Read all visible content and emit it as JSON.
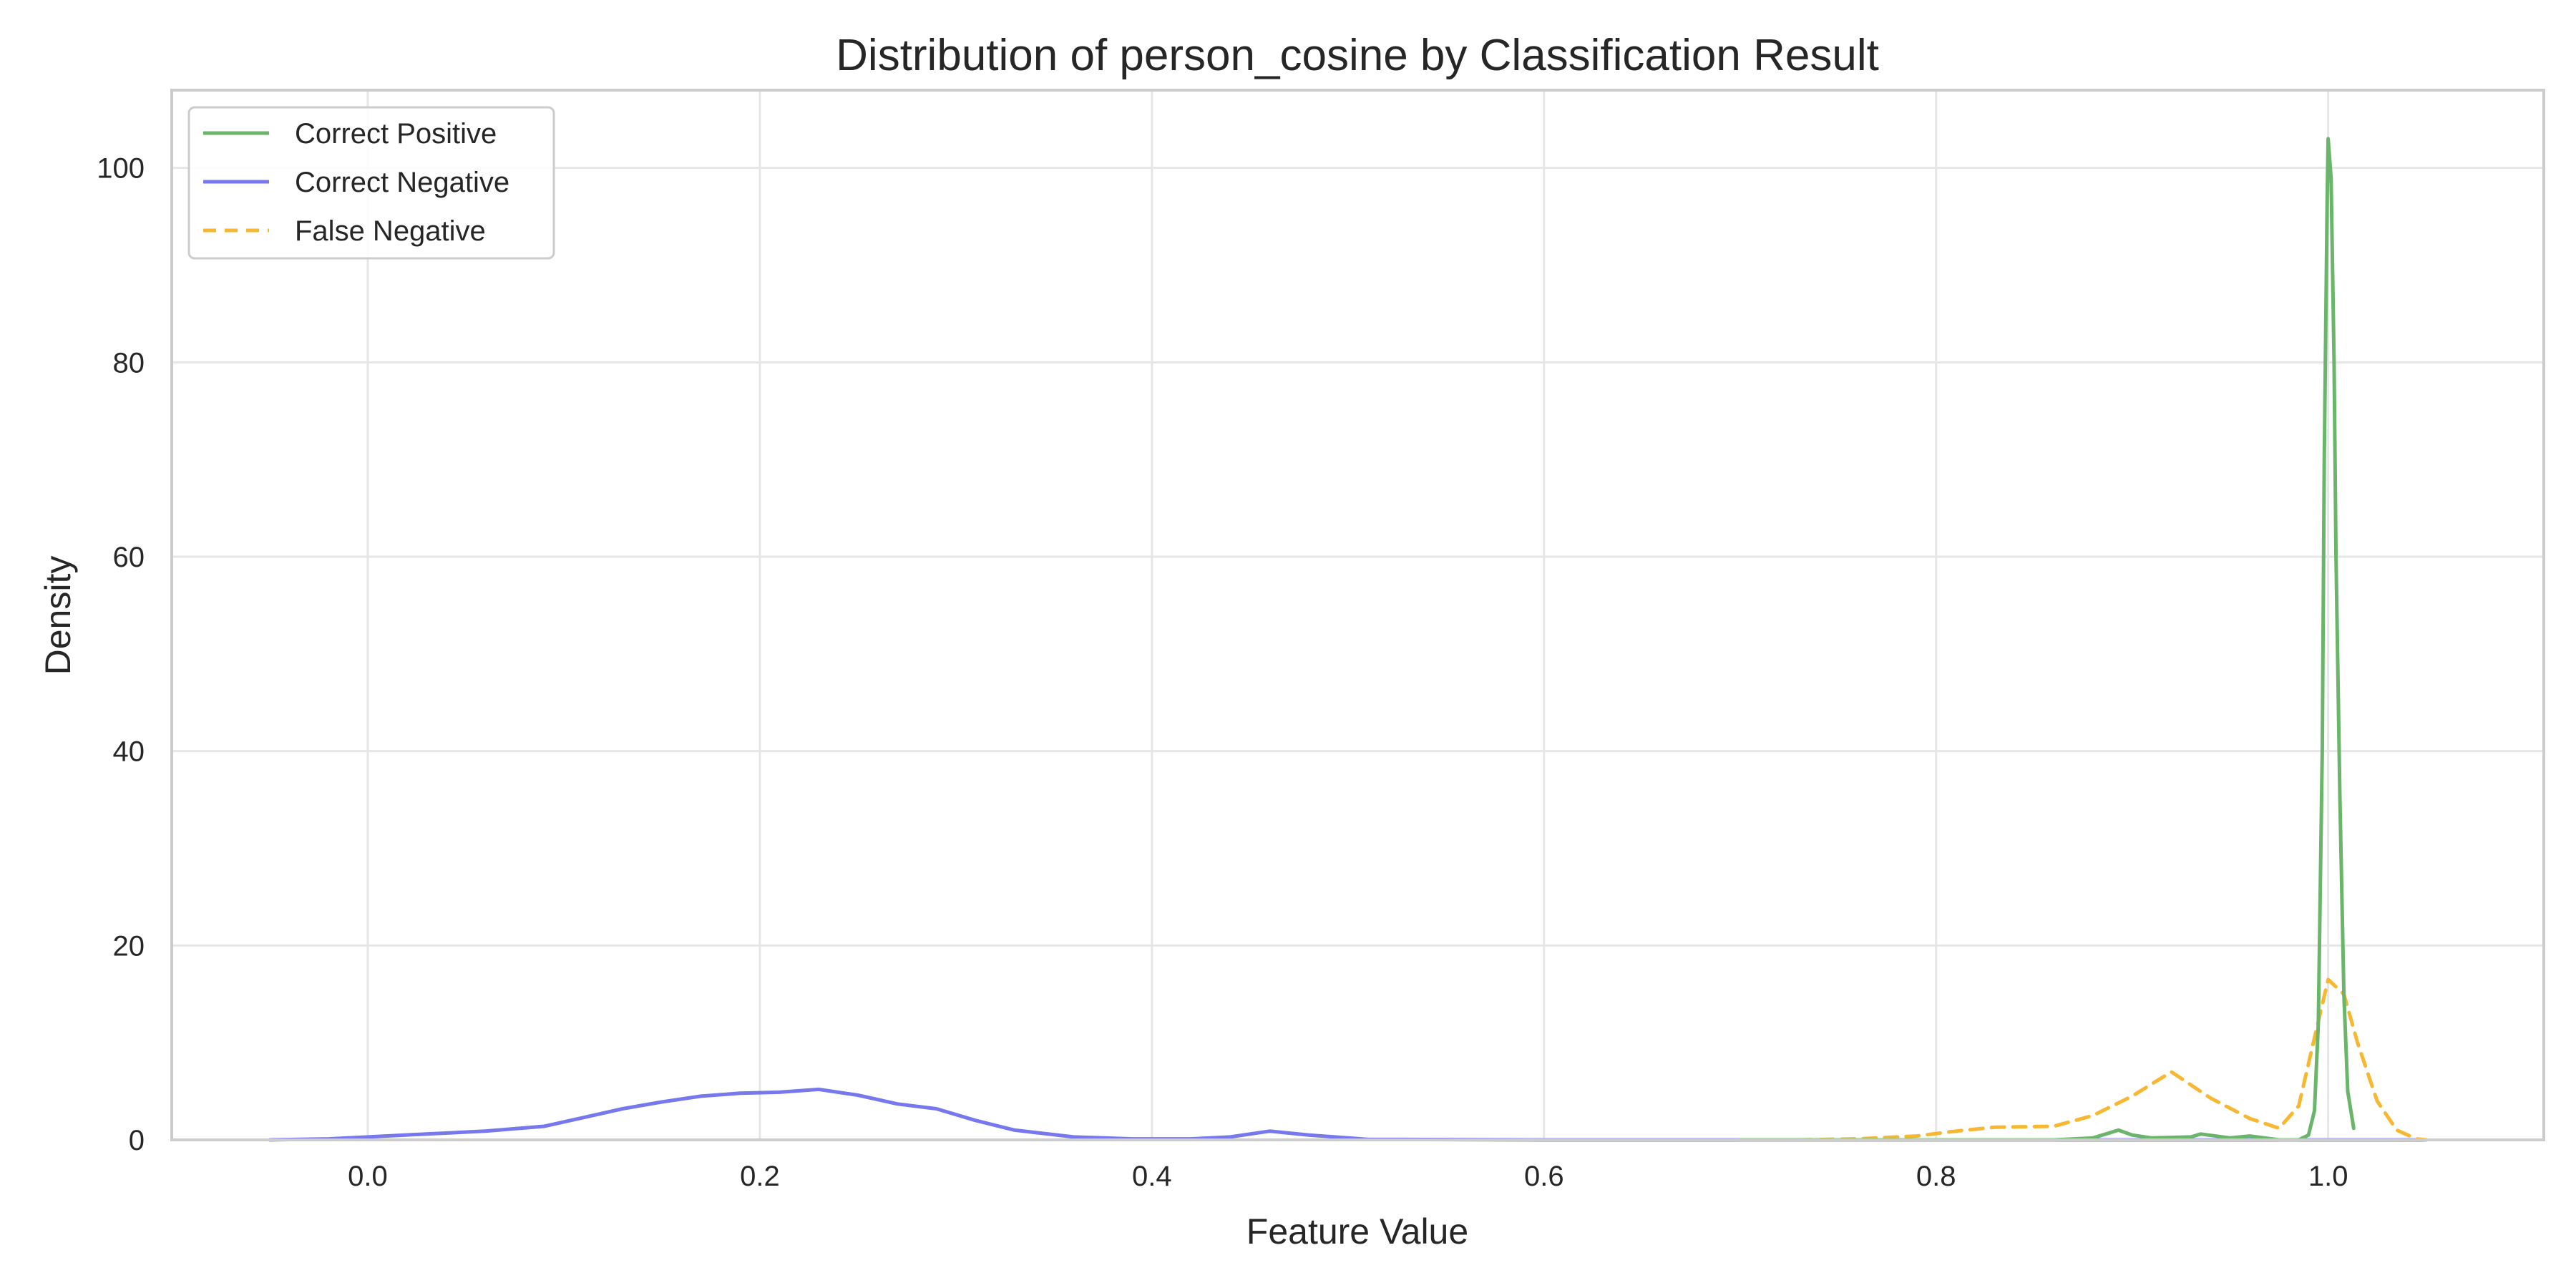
{
  "chart_data": {
    "type": "line",
    "title": "Distribution of person_cosine by Classification Result",
    "xlabel": "Feature Value",
    "ylabel": "Density",
    "xlim": [
      -0.1,
      1.11
    ],
    "ylim": [
      0,
      108
    ],
    "xticks": [
      0.0,
      0.2,
      0.4,
      0.6,
      0.8,
      1.0
    ],
    "xtick_labels": [
      "0.0",
      "0.2",
      "0.4",
      "0.6",
      "0.8",
      "1.0"
    ],
    "yticks": [
      0,
      20,
      40,
      60,
      80,
      100
    ],
    "ytick_labels": [
      "0",
      "20",
      "40",
      "60",
      "80",
      "100"
    ],
    "grid": true,
    "legend_position": "top-left",
    "series": [
      {
        "name": "Correct Positive",
        "color": "#6ab56a",
        "dash": "solid",
        "x": [
          0.7,
          0.8,
          0.86,
          0.88,
          0.893,
          0.9,
          0.91,
          0.93,
          0.935,
          0.95,
          0.96,
          0.975,
          0.985,
          0.99,
          0.993,
          0.995,
          0.997,
          0.998,
          0.9995,
          1.0,
          1.0015,
          1.003,
          1.004,
          1.006,
          1.008,
          1.01,
          1.013
        ],
        "y": [
          0,
          0,
          0,
          0.2,
          1.0,
          0.5,
          0.2,
          0.3,
          0.6,
          0.2,
          0.4,
          0,
          0,
          0.5,
          3,
          12,
          40,
          70,
          97,
          103,
          99,
          80,
          60,
          35,
          15,
          5,
          1.2
        ]
      },
      {
        "name": "Correct Negative",
        "color": "#7777ee",
        "dash": "solid",
        "x": [
          -0.05,
          -0.02,
          0.0,
          0.03,
          0.06,
          0.09,
          0.11,
          0.13,
          0.15,
          0.17,
          0.19,
          0.21,
          0.23,
          0.25,
          0.27,
          0.29,
          0.31,
          0.33,
          0.36,
          0.39,
          0.42,
          0.44,
          0.46,
          0.48,
          0.51,
          0.6,
          0.8,
          1.0,
          1.05
        ],
        "y": [
          0,
          0.1,
          0.3,
          0.6,
          0.9,
          1.4,
          2.3,
          3.2,
          3.9,
          4.5,
          4.8,
          4.9,
          5.2,
          4.6,
          3.7,
          3.2,
          2.0,
          1.0,
          0.3,
          0.1,
          0.1,
          0.3,
          0.9,
          0.5,
          0.05,
          0,
          0,
          0,
          0
        ]
      },
      {
        "name": "False Negative",
        "color": "#f7b731",
        "dash": "dashed",
        "x": [
          0.73,
          0.76,
          0.79,
          0.81,
          0.83,
          0.86,
          0.88,
          0.9,
          0.92,
          0.94,
          0.96,
          0.975,
          0.985,
          0.993,
          1.0,
          1.008,
          1.015,
          1.025,
          1.035,
          1.045,
          1.05
        ],
        "y": [
          0,
          0.1,
          0.4,
          0.9,
          1.3,
          1.4,
          2.5,
          4.5,
          7.0,
          4.3,
          2.2,
          1.2,
          3.5,
          10.5,
          16.5,
          15.0,
          10.0,
          4.0,
          1.0,
          0.1,
          0
        ]
      }
    ]
  },
  "colors": {
    "background": "#ffffff",
    "grid": "#e6e6e6",
    "frame": "#cccccc"
  }
}
